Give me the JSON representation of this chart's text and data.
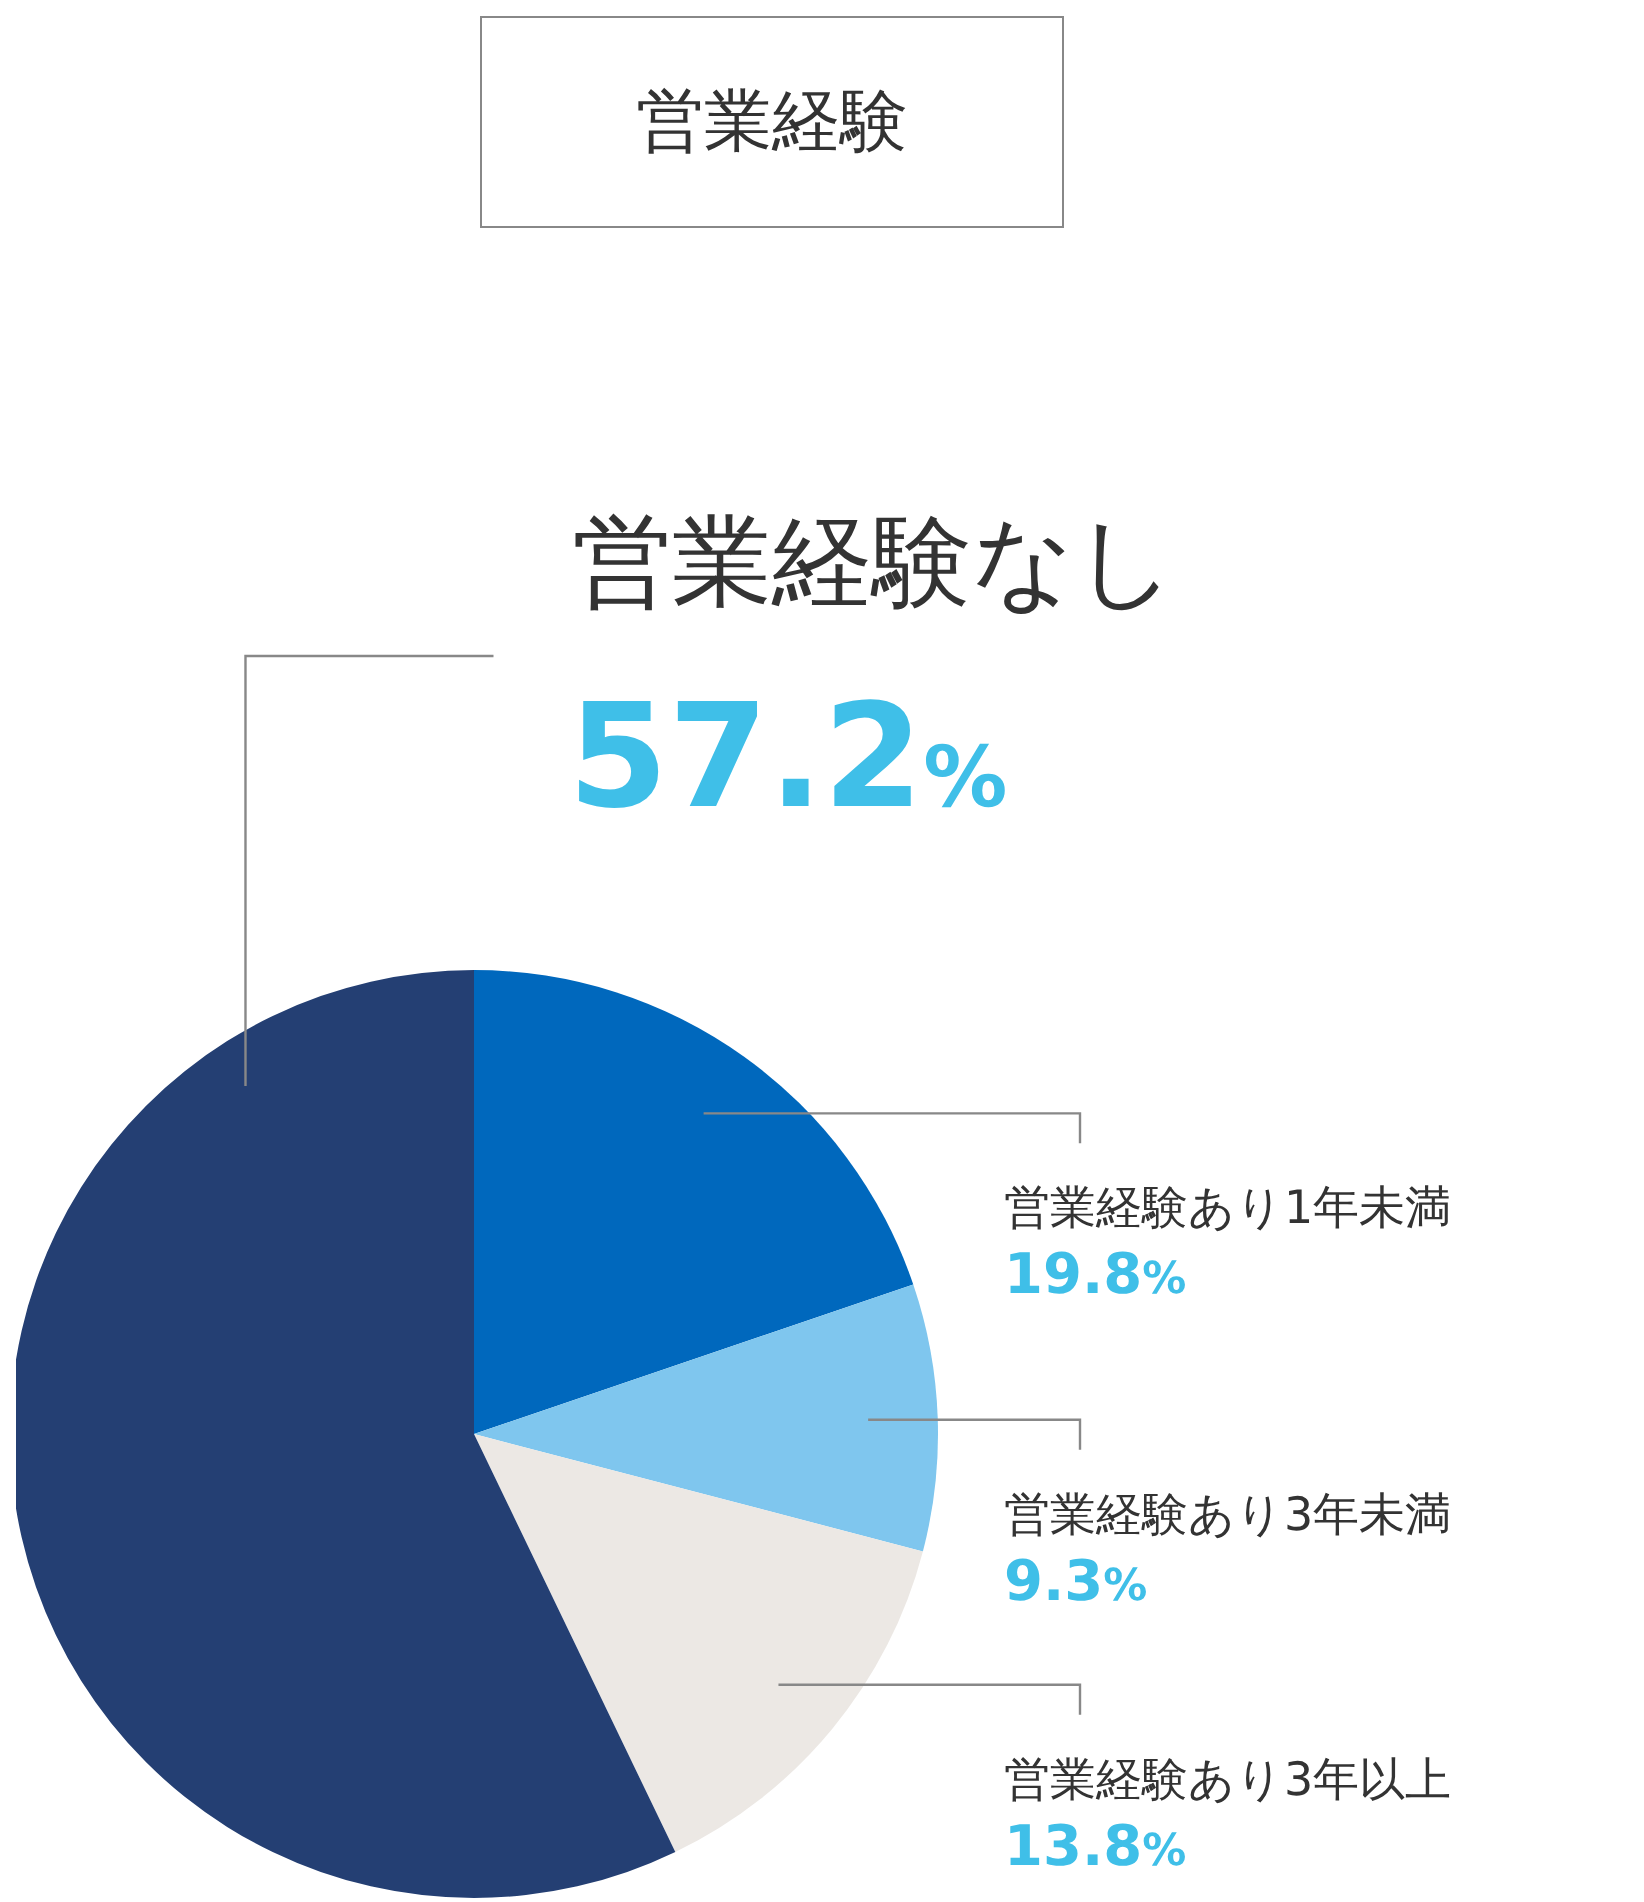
{
  "chart_data": {
    "type": "pie",
    "title": "営業経験",
    "categories": [
      "営業経験あり1年未満",
      "営業経験あり3年未満",
      "営業経験あり3年以上",
      "営業経験なし"
    ],
    "values": [
      19.8,
      9.3,
      13.8,
      57.2
    ],
    "colors": [
      "#0068bd",
      "#7fc6ee",
      "#ece8e4",
      "#243f73"
    ],
    "value_labels": [
      "19.8%",
      "9.3%",
      "13.8%",
      "57.2%"
    ]
  }
}
